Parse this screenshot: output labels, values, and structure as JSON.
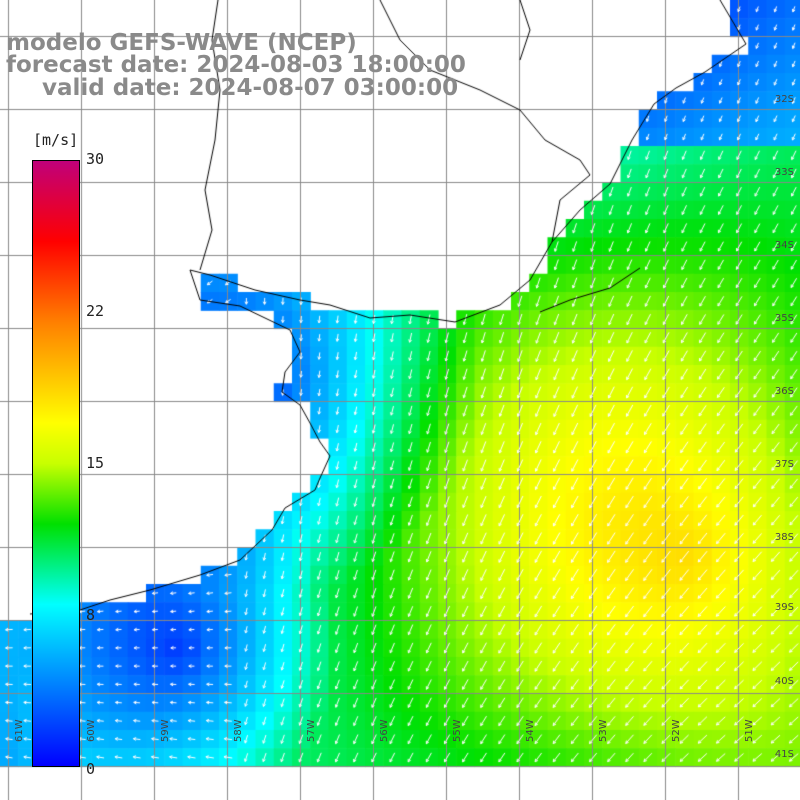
{
  "title": {
    "line1": "modelo GEFS-WAVE (NCEP)",
    "line2": "forecast date: 2024-08-03 18:00:00",
    "line3": "valid date: 2024-08-07 03:00:00"
  },
  "colorbar": {
    "unit": "[m/s]",
    "ticks": [
      "30",
      "22",
      "15",
      "8",
      "0"
    ],
    "tick_values": [
      30,
      22,
      15,
      8,
      0
    ],
    "range": [
      0,
      30
    ],
    "stops": [
      {
        "v": 0,
        "c": "#0000ff"
      },
      {
        "v": 4,
        "c": "#0080ff"
      },
      {
        "v": 8,
        "c": "#00ffff"
      },
      {
        "v": 12,
        "c": "#00e000"
      },
      {
        "v": 15,
        "c": "#c8ff00"
      },
      {
        "v": 17,
        "c": "#ffff00"
      },
      {
        "v": 22,
        "c": "#ff8000"
      },
      {
        "v": 26,
        "c": "#ff0000"
      },
      {
        "v": 30,
        "c": "#c0007a"
      }
    ]
  },
  "axes": {
    "lat_labels": [
      "32S",
      "33S",
      "34S",
      "35S",
      "36S",
      "37S",
      "38S",
      "39S",
      "40S",
      "41S"
    ],
    "lon_labels": [
      "61W",
      "60W",
      "59W",
      "58W",
      "57W",
      "56W",
      "55W",
      "54W",
      "53W",
      "52W",
      "51W"
    ]
  },
  "colors": {
    "grid": "#888888",
    "coast": "#000000",
    "arrows": "#ffffff",
    "title": "#8a8a8a"
  }
}
